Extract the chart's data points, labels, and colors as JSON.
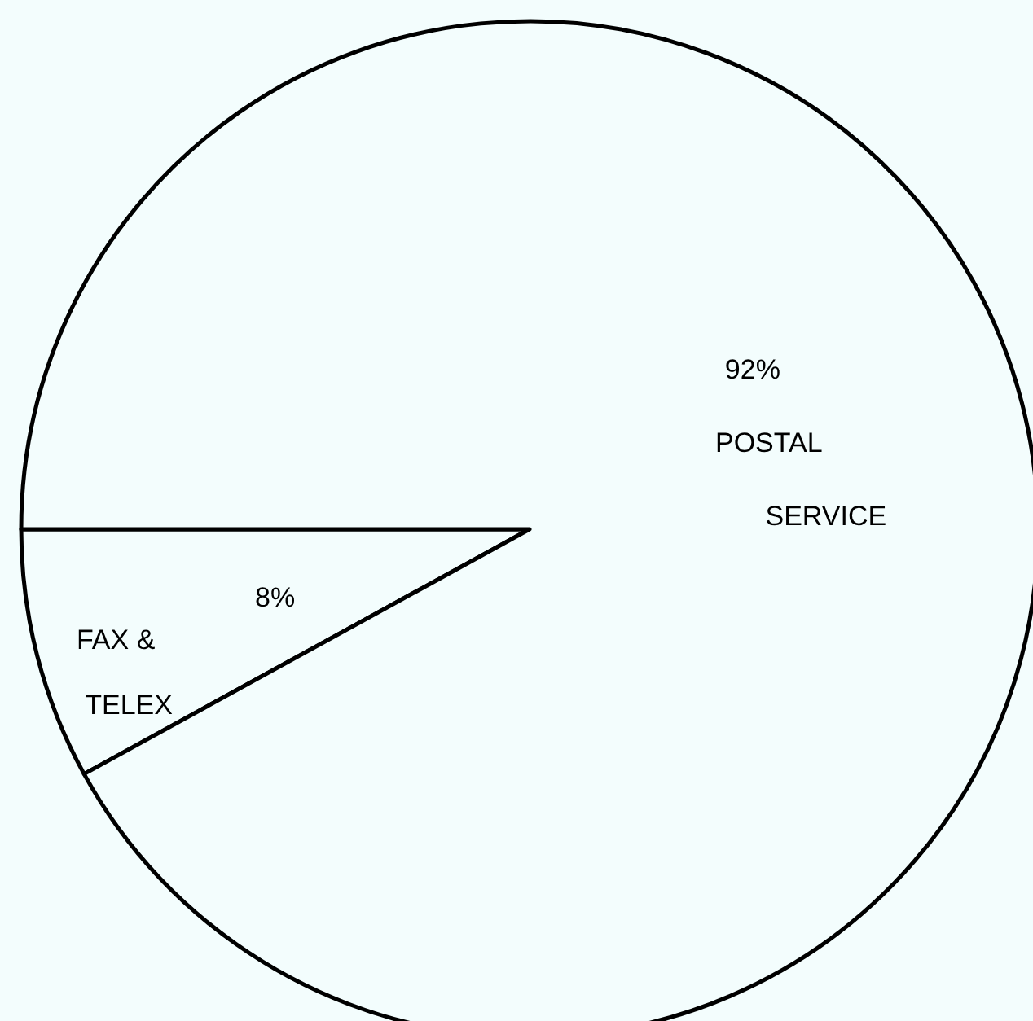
{
  "chart_data": {
    "type": "pie",
    "categories": [
      "FAX & TELEX",
      "POSTAL SERVICE"
    ],
    "values": [
      8,
      92
    ],
    "value_labels": [
      "8%",
      "92%"
    ],
    "colors": [
      "#f3fdfd",
      "#f3fdfd"
    ]
  }
}
